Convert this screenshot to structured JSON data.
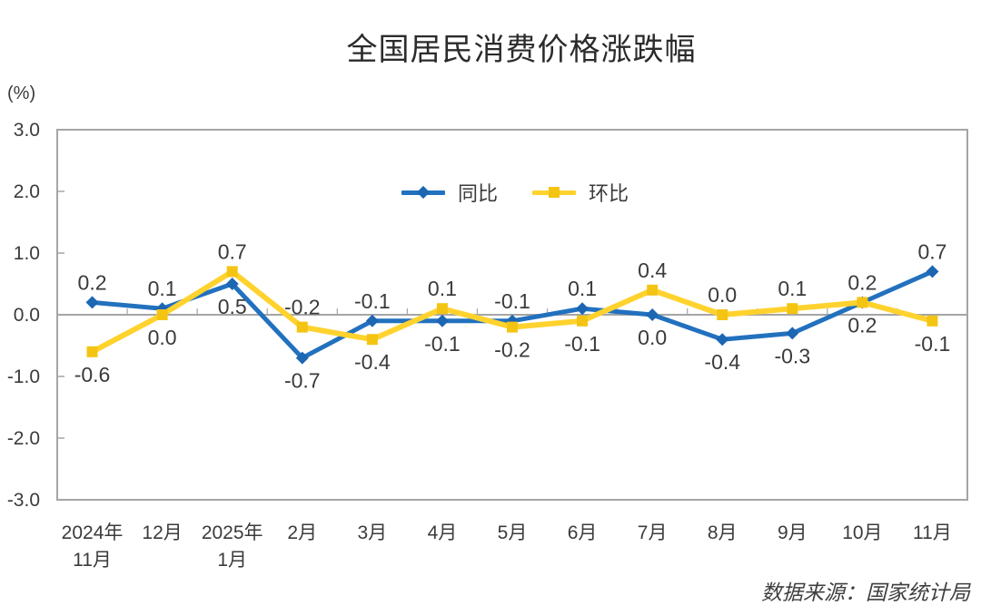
{
  "chart_data": {
    "type": "line",
    "title": "全国居民消费价格涨跌幅",
    "y_unit": "(%)",
    "source": "数据来源：国家统计局",
    "categories": [
      [
        "2024年",
        "11月"
      ],
      [
        "12月"
      ],
      [
        "2025年",
        "1月"
      ],
      [
        "2月"
      ],
      [
        "3月"
      ],
      [
        "4月"
      ],
      [
        "5月"
      ],
      [
        "6月"
      ],
      [
        "7月"
      ],
      [
        "8月"
      ],
      [
        "9月"
      ],
      [
        "10月"
      ],
      [
        "11月"
      ]
    ],
    "series": [
      {
        "name": "同比",
        "marker": "diamond",
        "color": "#2271BE",
        "marker_color": "#1C66B2",
        "values": [
          0.2,
          0.1,
          0.5,
          -0.7,
          -0.1,
          -0.1,
          -0.1,
          0.1,
          0.0,
          -0.4,
          -0.3,
          0.2,
          0.7
        ]
      },
      {
        "name": "环比",
        "marker": "square",
        "color": "#FFD22E",
        "marker_color": "#F4C413",
        "values": [
          -0.6,
          0.0,
          0.7,
          -0.2,
          -0.4,
          0.1,
          -0.2,
          -0.1,
          0.4,
          0.0,
          0.1,
          0.2,
          -0.1
        ]
      }
    ],
    "ylim": [
      -3.0,
      3.0
    ],
    "y_ticks": [
      3.0,
      2.0,
      1.0,
      0.0,
      -1.0,
      -2.0,
      -3.0
    ],
    "grid": false,
    "legend_position": "top-center",
    "axis_color": "#A5A5A5",
    "label_color": "#3B3B3B"
  }
}
